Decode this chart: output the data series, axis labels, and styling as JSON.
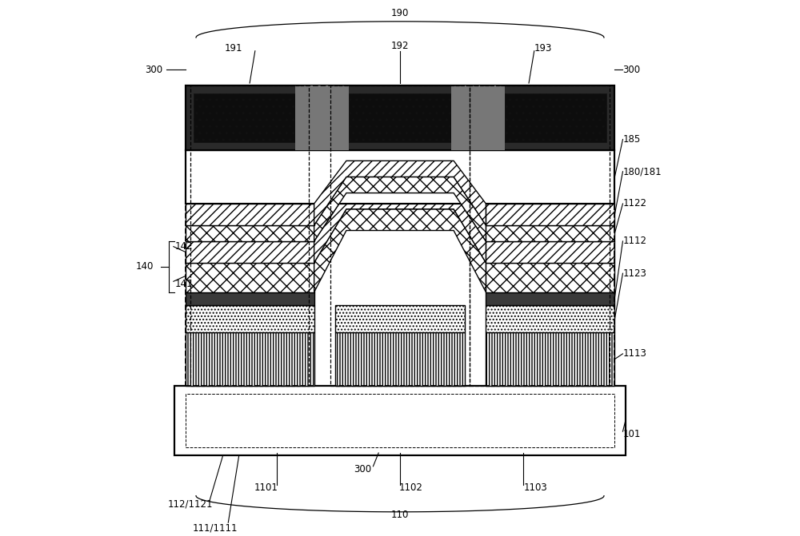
{
  "bg": "#ffffff",
  "figsize": [
    10.0,
    6.71
  ],
  "dpi": 100,
  "fs": 8.5
}
